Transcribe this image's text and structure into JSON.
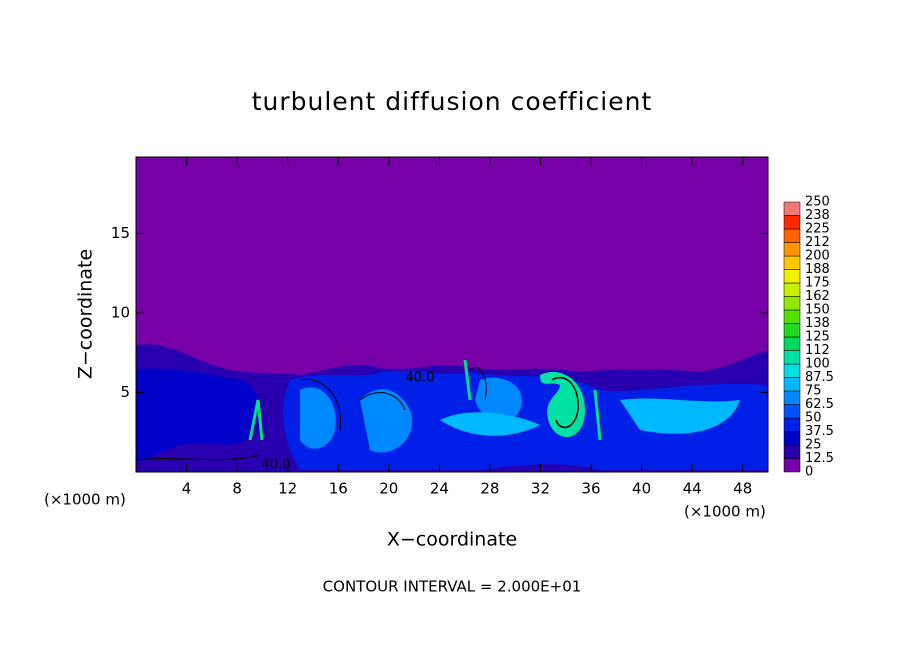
{
  "chart_data": {
    "type": "contour",
    "title": "turbulent diffusion coefficient",
    "xlabel": "X−coordinate",
    "ylabel": "Z−coordinate",
    "x_unit_left": "(×1000 m)",
    "x_unit_right": "(×1000 m)",
    "note": "CONTOUR INTERVAL = 2.000E+01",
    "contour_labels": [
      "40.0",
      "40.0"
    ],
    "xlim": [
      0,
      50
    ],
    "xticks": [
      4,
      8,
      12,
      16,
      20,
      24,
      28,
      32,
      36,
      40,
      44,
      48
    ],
    "ylim": [
      0,
      19.8
    ],
    "yticks": [
      5,
      10,
      15
    ],
    "colorbar": {
      "levels": [
        0,
        12.5,
        25,
        37.5,
        50,
        62.5,
        75,
        87.5,
        100,
        {
          "value": 112.5,
          "label": "112"
        },
        125,
        {
          "value": 137.5,
          "label": "138"
        },
        150,
        {
          "value": 162.5,
          "label": "162"
        },
        175,
        {
          "value": 187.5,
          "label": "188"
        },
        200,
        {
          "value": 212.5,
          "label": "212"
        },
        225,
        {
          "value": 237.5,
          "label": "238"
        },
        250
      ],
      "colors": [
        "#7800a8",
        "#2800b0",
        "#0000c8",
        "#0020e8",
        "#0050ff",
        "#0088ff",
        "#00b8ff",
        "#00e0e0",
        "#00e0a0",
        "#00d860",
        "#20d820",
        "#50e000",
        "#90e800",
        "#c8f000",
        "#f0f000",
        "#ffc800",
        "#ff9600",
        "#ff6400",
        "#ff2800",
        "#f07878"
      ]
    }
  }
}
